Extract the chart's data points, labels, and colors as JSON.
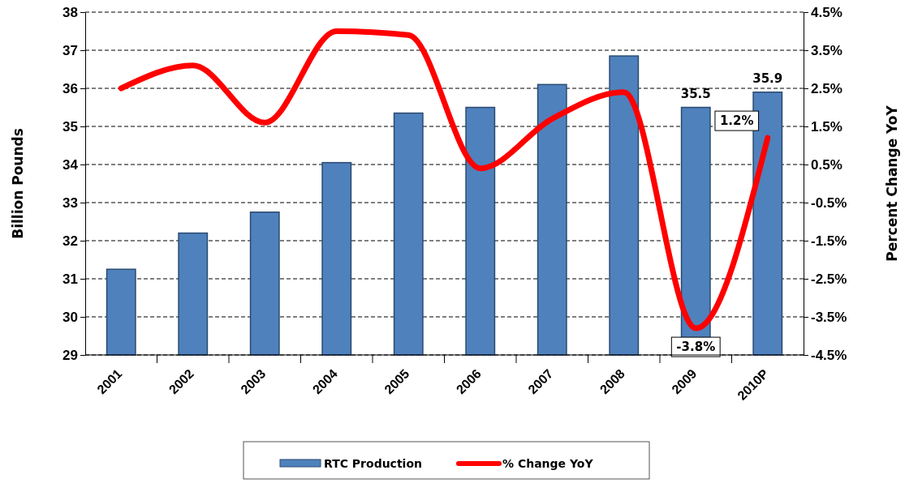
{
  "chart_data": {
    "type": "bar",
    "categories": [
      "2001",
      "2002",
      "2003",
      "2004",
      "2005",
      "2006",
      "2007",
      "2008",
      "2009",
      "2010P"
    ],
    "ylabel": "Billion Pounds",
    "y2label": "Percent Change YoY",
    "ylim": [
      29,
      38
    ],
    "yticks": [
      29,
      30,
      31,
      32,
      33,
      34,
      35,
      36,
      37,
      38
    ],
    "y2lim": [
      -4.5,
      4.5
    ],
    "y2ticks": [
      {
        "value": -4.5,
        "label": "-4.5%"
      },
      {
        "value": -3.5,
        "label": "-3.5%"
      },
      {
        "value": -2.5,
        "label": "-2.5%"
      },
      {
        "value": -1.5,
        "label": "-1.5%"
      },
      {
        "value": -0.5,
        "label": "-0.5%"
      },
      {
        "value": 0.5,
        "label": "0.5%"
      },
      {
        "value": 1.5,
        "label": "1.5%"
      },
      {
        "value": 2.5,
        "label": "2.5%"
      },
      {
        "value": 3.5,
        "label": "3.5%"
      },
      {
        "value": 4.5,
        "label": "4.5%"
      }
    ],
    "grid": "y",
    "legend": "bottom",
    "series": [
      {
        "name": "RTC Production",
        "color": "#4f81bd",
        "values": [
          31.25,
          32.2,
          32.75,
          34.05,
          35.35,
          35.5,
          36.1,
          36.85,
          35.5,
          35.9
        ],
        "value_labels": [
          null,
          null,
          null,
          null,
          null,
          null,
          null,
          null,
          "35.5",
          "35.9"
        ]
      },
      {
        "name": "% Change YoY",
        "type": "line",
        "axis": "y2",
        "color": "#ff0000",
        "marker": "none",
        "line_style": "solid",
        "values": [
          2.5,
          3.1,
          1.6,
          4.0,
          3.9,
          0.4,
          1.7,
          2.4,
          -3.8,
          1.2
        ],
        "value_labels": [
          null,
          null,
          null,
          null,
          null,
          null,
          null,
          null,
          "-3.8%",
          "1.2%"
        ]
      }
    ]
  }
}
